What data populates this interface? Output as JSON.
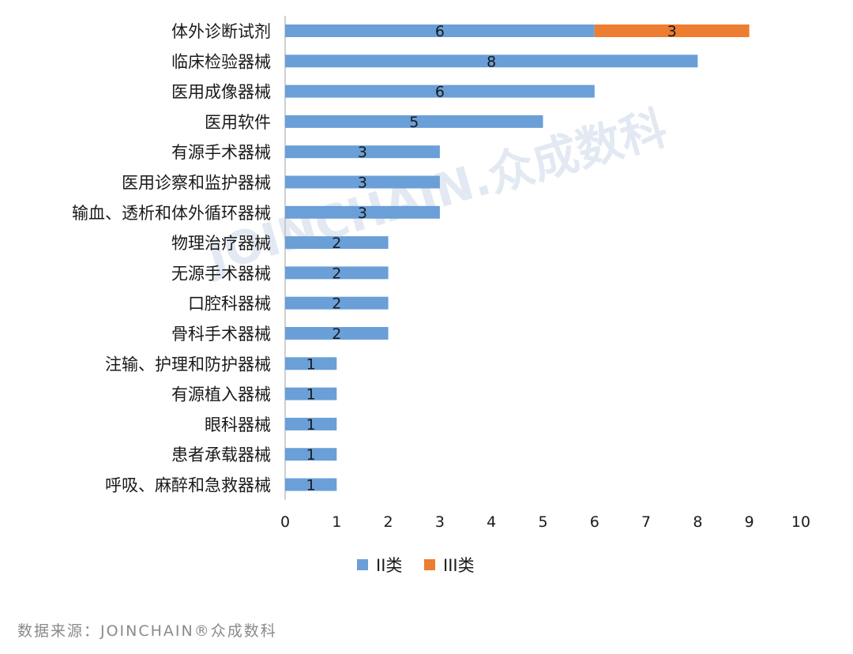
{
  "chart_data": {
    "type": "bar",
    "orientation": "horizontal",
    "stacked": true,
    "categories": [
      "体外诊断试剂",
      "临床检验器械",
      "医用成像器械",
      "医用软件",
      "有源手术器械",
      "医用诊察和监护器械",
      "输血、透析和体外循环器械",
      "物理治疗器械",
      "无源手术器械",
      "口腔科器械",
      "骨科手术器械",
      "注输、护理和防护器械",
      "有源植入器械",
      "眼科器械",
      "患者承载器械",
      "呼吸、麻醉和急救器械"
    ],
    "series": [
      {
        "name": "II类",
        "color": "#6a9fd8",
        "values": [
          6,
          8,
          6,
          5,
          3,
          3,
          3,
          2,
          2,
          2,
          2,
          1,
          1,
          1,
          1,
          1
        ]
      },
      {
        "name": "III类",
        "color": "#ed7d31",
        "values": [
          3,
          0,
          0,
          0,
          0,
          0,
          0,
          0,
          0,
          0,
          0,
          0,
          0,
          0,
          0,
          0
        ]
      }
    ],
    "xlim": [
      0,
      10
    ],
    "xticks": [
      0,
      1,
      2,
      3,
      4,
      5,
      6,
      7,
      8,
      9,
      10
    ],
    "grid": false,
    "legend_position": "bottom"
  },
  "watermark": "JOINCHAIN.众成数科",
  "source": "数据来源：JOINCHAIN®众成数科"
}
